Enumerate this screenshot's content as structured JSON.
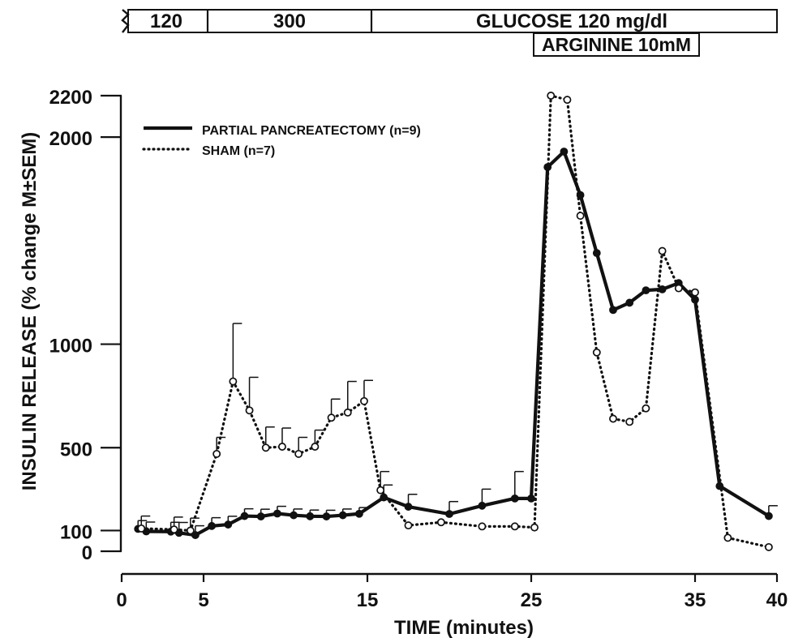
{
  "top_bar": {
    "segment_120": "120",
    "segment_300": "300",
    "glucose": "GLUCOSE 120 mg/dl",
    "arginine": "ARGININE 10mM"
  },
  "legend": {
    "partial": "PARTIAL PANCREATECTOMY (n=9)",
    "sham": "SHAM (n=7)"
  },
  "chart_data": {
    "type": "line",
    "title": "",
    "xlabel": "TIME (minutes)",
    "ylabel": "INSULIN RELEASE (% change M±SEM)",
    "x_ticks": [
      0,
      5,
      15,
      25,
      35,
      40
    ],
    "y_ticks": [
      0,
      100,
      500,
      1000,
      2000,
      2200
    ],
    "xlim": [
      0,
      40
    ],
    "ylim": [
      0,
      2200
    ],
    "grid": false,
    "legend_position": "top-left",
    "stimulus_periods": [
      {
        "label": "120",
        "start": 0,
        "end": 5
      },
      {
        "label": "300",
        "start": 5,
        "end": 15
      },
      {
        "label": "GLUCOSE 120 mg/dl",
        "start": 15,
        "end": 40
      },
      {
        "label": "ARGININE 10mM",
        "start": 25,
        "end": 35
      }
    ],
    "series": [
      {
        "name": "PARTIAL PANCREATECTOMY (n=9)",
        "style": "solid",
        "marker": "filled-circle",
        "x": [
          1,
          1.5,
          3,
          3.5,
          4.5,
          5.5,
          6.5,
          7.5,
          8.5,
          9.5,
          10.5,
          11.5,
          12.5,
          13.5,
          14.5,
          16,
          17.5,
          20,
          22,
          24,
          25,
          26,
          27,
          28,
          29,
          30,
          31,
          32,
          33,
          34,
          35,
          36.5,
          39.5
        ],
        "y": [
          108,
          96,
          95,
          89,
          78,
          122,
          129,
          170,
          168,
          182,
          174,
          169,
          168,
          174,
          181,
          260,
          215,
          180,
          220,
          255,
          255,
          1855,
          1930,
          1720,
          1440,
          1165,
          1200,
          1260,
          1265,
          1295,
          1215,
          315,
          170
        ],
        "error_plus": [
          40,
          45,
          45,
          50,
          45,
          40,
          40,
          35,
          35,
          35,
          30,
          30,
          30,
          30,
          30,
          60,
          60,
          60,
          80,
          130,
          0,
          0,
          0,
          0,
          0,
          0,
          0,
          0,
          0,
          0,
          0,
          0,
          50
        ]
      },
      {
        "name": "SHAM (n=7)",
        "style": "dotted",
        "marker": "open-circle",
        "x": [
          1.2,
          3.2,
          4.2,
          5.8,
          6.8,
          7.8,
          8.8,
          9.8,
          10.8,
          11.8,
          12.8,
          13.8,
          14.8,
          15.8,
          17.5,
          19.5,
          22,
          24,
          25.2,
          26.2,
          27.2,
          28,
          29,
          30,
          31,
          32,
          33,
          34,
          35,
          37,
          39.5
        ],
        "y": [
          110,
          105,
          100,
          470,
          820,
          680,
          500,
          505,
          470,
          505,
          645,
          670,
          725,
          295,
          125,
          140,
          120,
          120,
          115,
          2200,
          2180,
          1620,
          960,
          640,
          625,
          690,
          1450,
          1270,
          1250,
          65,
          20
        ],
        "error_plus": [
          60,
          60,
          60,
          80,
          280,
          160,
          100,
          90,
          80,
          80,
          90,
          150,
          100,
          90,
          0,
          0,
          0,
          0,
          0,
          0,
          0,
          0,
          0,
          0,
          0,
          0,
          0,
          0,
          0,
          0,
          0
        ]
      }
    ]
  }
}
